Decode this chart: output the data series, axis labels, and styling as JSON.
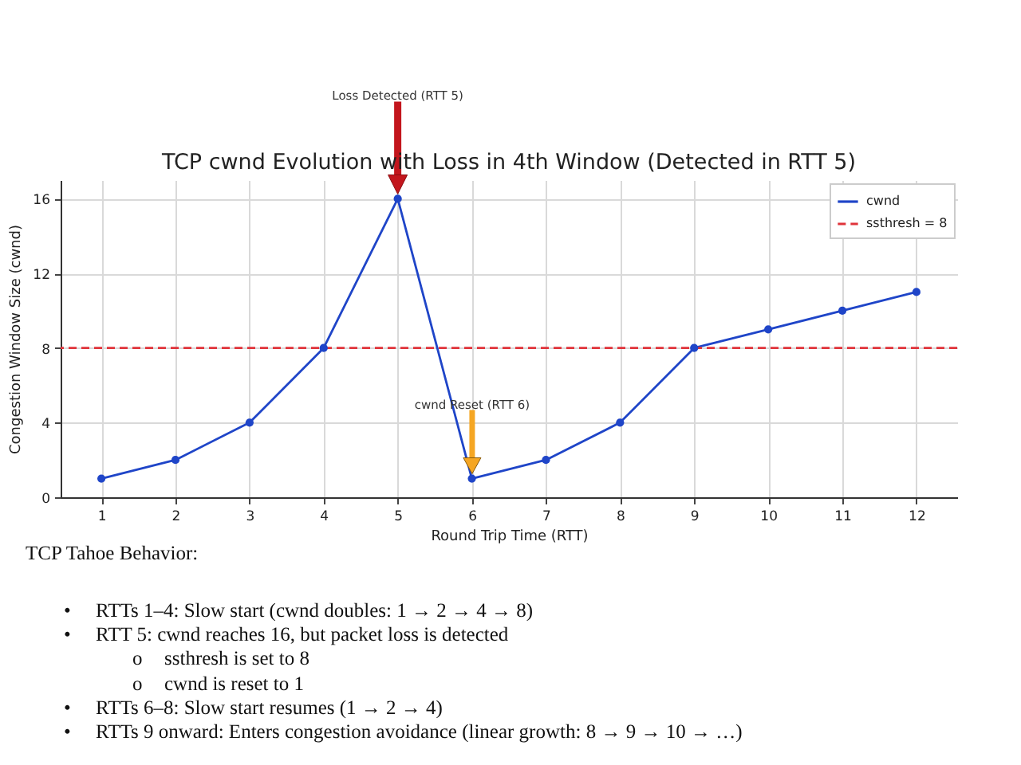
{
  "chart_data": {
    "type": "line",
    "title": "TCP cwnd Evolution with Loss in 4th Window (Detected in RTT 5)",
    "xlabel": "Round Trip Time (RTT)",
    "ylabel": "Congestion Window Size (cwnd)",
    "x": [
      1,
      2,
      3,
      4,
      5,
      6,
      7,
      8,
      9,
      10,
      11,
      12
    ],
    "series": [
      {
        "name": "cwnd",
        "color": "#1f45c8",
        "values": [
          1,
          2,
          4,
          8,
          16,
          1,
          2,
          4,
          8,
          9,
          10,
          11
        ]
      }
    ],
    "xlim": [
      0.45,
      12.55
    ],
    "ylim": [
      0,
      17
    ],
    "xticks": [
      1,
      2,
      3,
      4,
      5,
      6,
      7,
      8,
      9,
      10,
      11,
      12
    ],
    "yticks": [
      0,
      4,
      8,
      12,
      16
    ],
    "ref_lines": [
      {
        "axis": "y",
        "value": 8,
        "label": "ssthresh = 8",
        "color": "#e0333a",
        "line_style": "dashed"
      }
    ],
    "annotations": [
      "Loss Detected (RTT 5)",
      "cwnd Reset (RTT 6)",
      "TCP Tahoe Behavior:",
      "• RTTs 1–4: Slow start (cwnd doubles: 1 → 2 → 4 → 8)",
      "• RTT 5: cwnd reaches 16, but packet loss is detected",
      "o ssthresh is set to 8",
      "o cwnd is reset to 1",
      "• RTTs 6–8: Slow start resumes (1 → 2 → 4)",
      "• RTTs 9 onward: Enters congestion avoidance (linear growth: 8 → 9 → 10 → …)"
    ],
    "grid": true,
    "legend": "top right",
    "marker": "circle",
    "line_style": "solid"
  }
}
